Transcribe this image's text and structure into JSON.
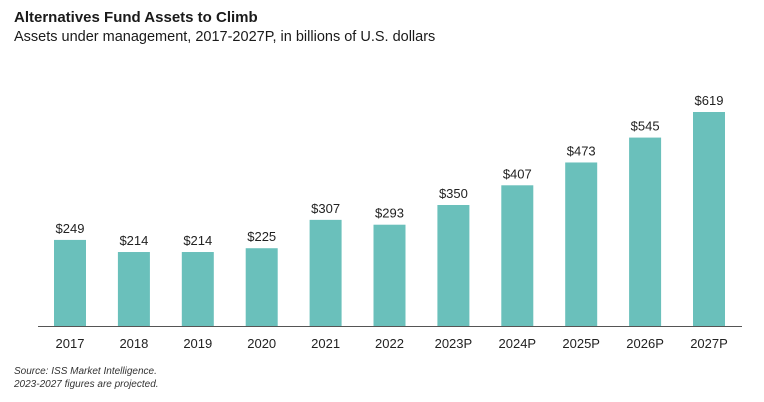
{
  "chart_data": {
    "type": "bar",
    "title": "Alternatives Fund Assets to Climb",
    "subtitle": "Assets under management, 2017-2027P, in billions of U.S. dollars",
    "categories": [
      "2017",
      "2018",
      "2019",
      "2020",
      "2021",
      "2022",
      "2023P",
      "2024P",
      "2025P",
      "2026P",
      "2027P"
    ],
    "values": [
      249,
      214,
      214,
      225,
      307,
      293,
      350,
      407,
      473,
      545,
      619
    ],
    "value_labels": [
      "$249",
      "$214",
      "$214",
      "$225",
      "$307",
      "$293",
      "$350",
      "$407",
      "$473",
      "$545",
      "$619"
    ],
    "xlabel": "",
    "ylabel": "",
    "ylim": [
      0,
      619
    ],
    "grid": false,
    "bar_color": "#6ac0bb"
  },
  "source": {
    "line1": "Source: ISS Market Intelligence.",
    "line2": "2023-2027 figures are projected."
  }
}
